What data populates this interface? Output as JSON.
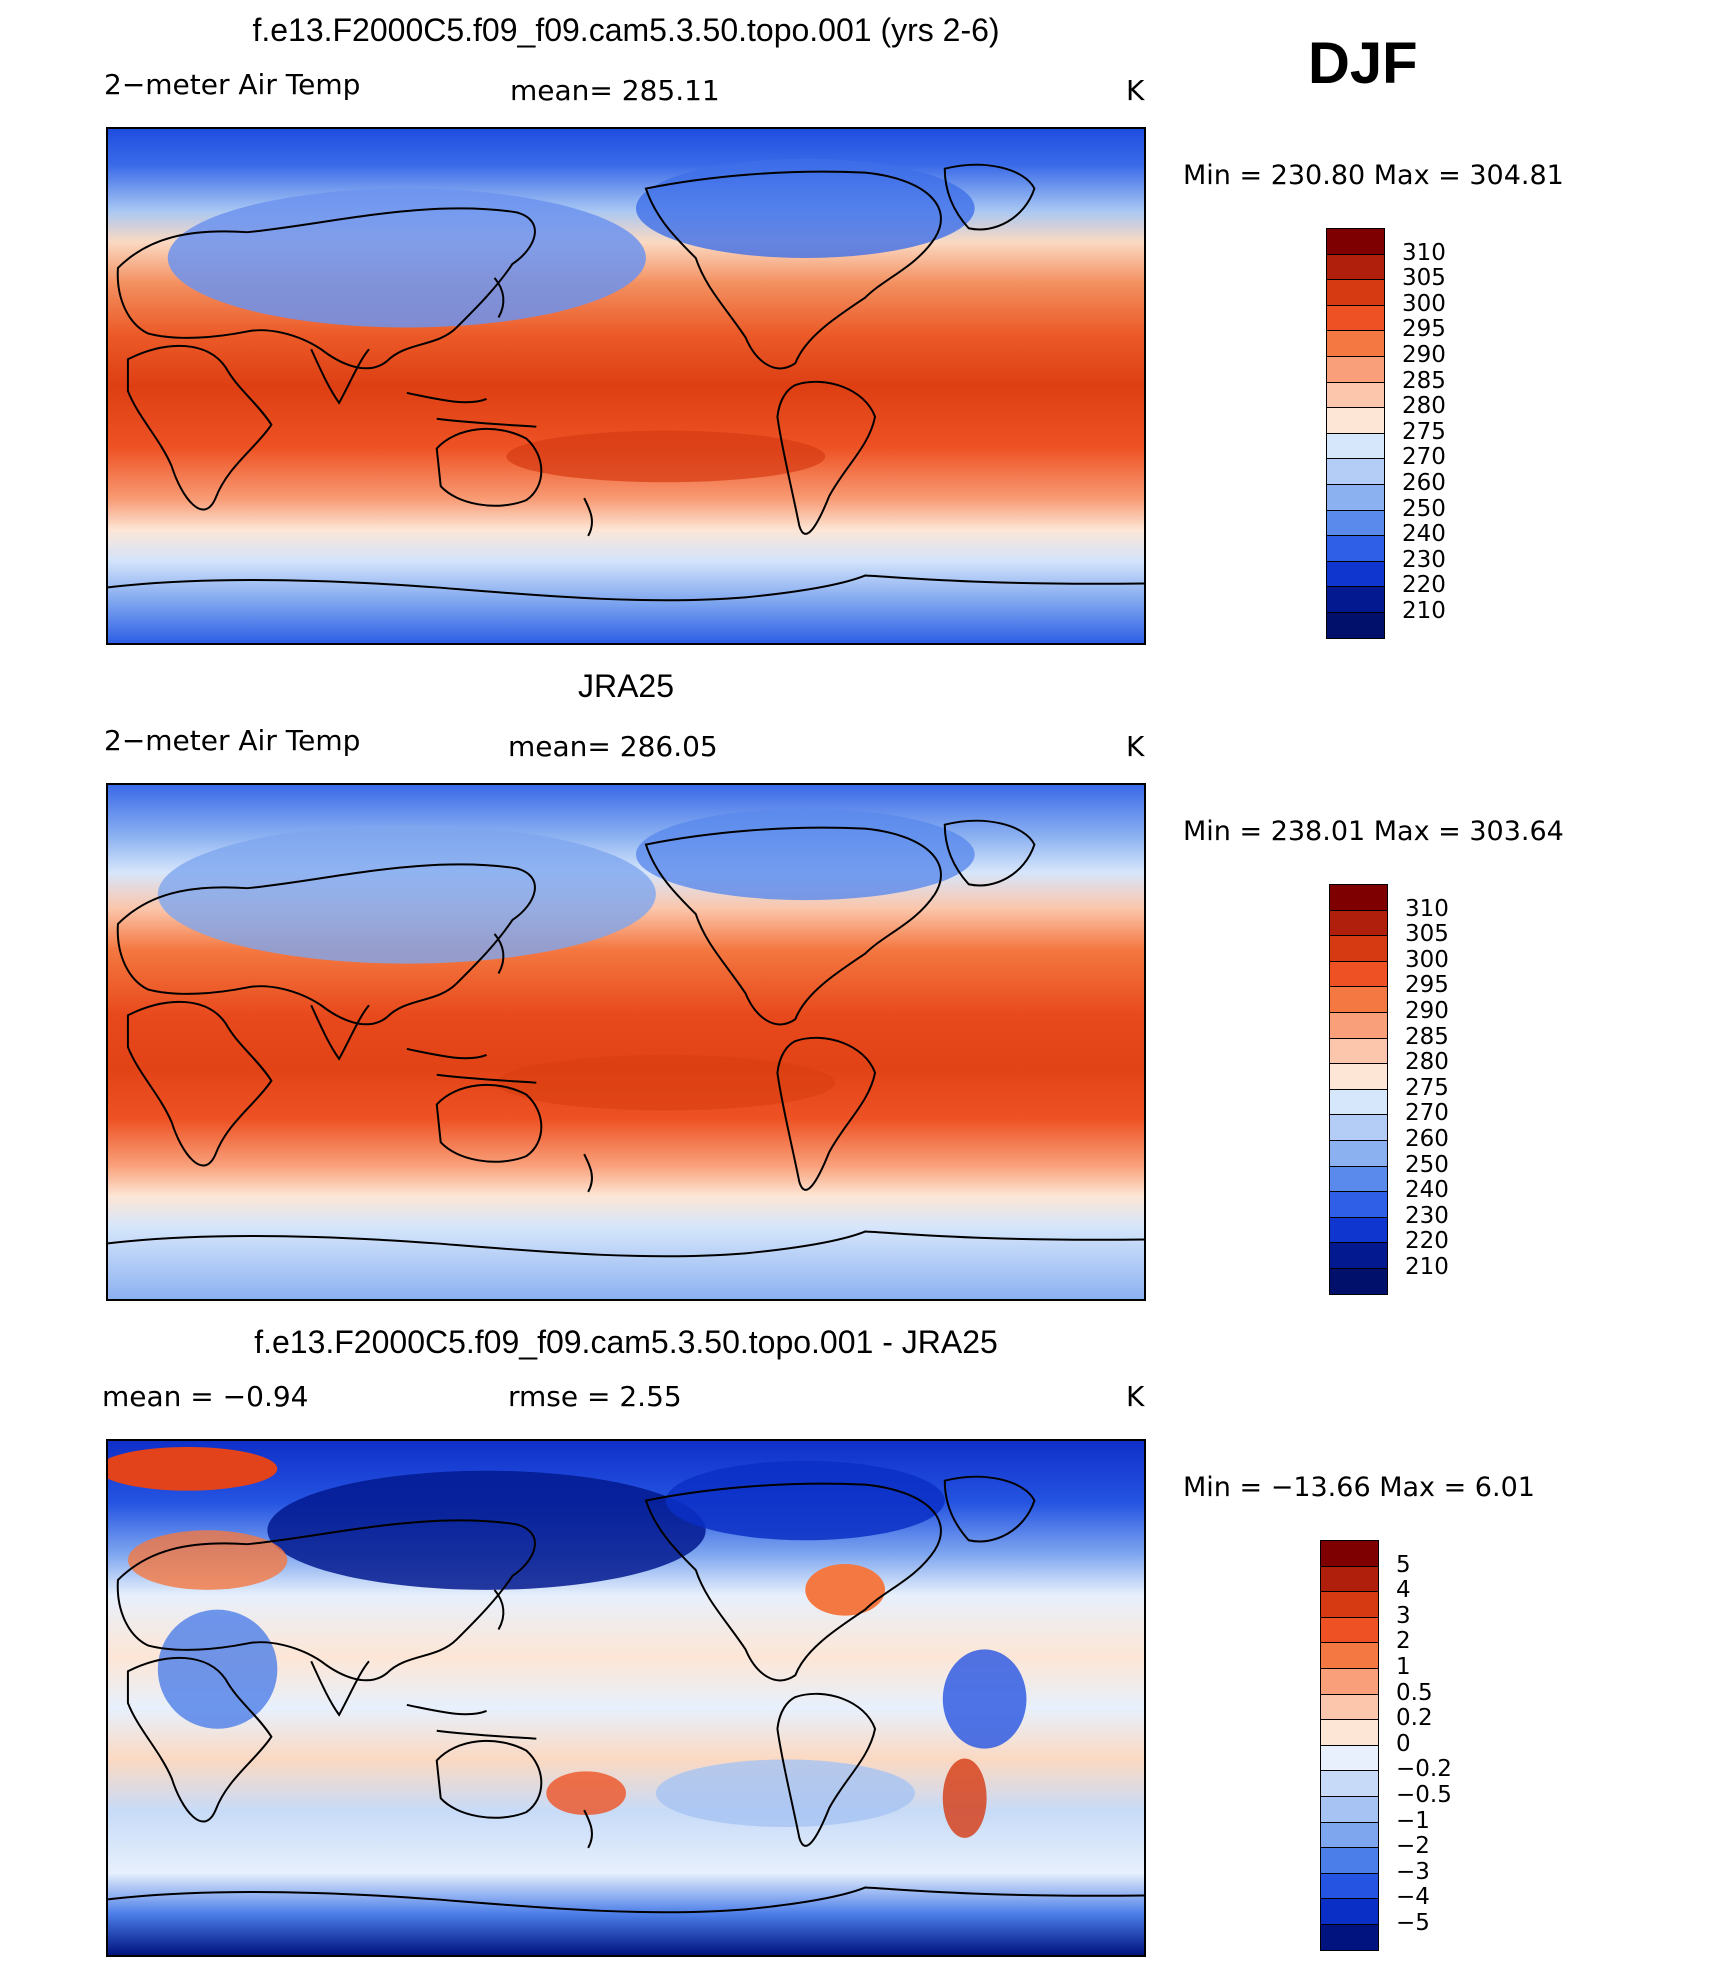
{
  "season": "DJF",
  "panels": [
    {
      "title": "f.e13.F2000C5.f09_f09.cam5.3.50.topo.001 (yrs 2-6)",
      "left": "2−meter Air Temp",
      "center": "mean=  285.11",
      "units": "K",
      "minmax": "Min  =  230.80  Max  =  304.81",
      "colorbar": [
        "310",
        "305",
        "300",
        "295",
        "290",
        "285",
        "280",
        "275",
        "270",
        "260",
        "250",
        "240",
        "230",
        "220",
        "210"
      ]
    },
    {
      "title": "JRA25",
      "left": "2−meter Air Temp",
      "center": "mean=  286.05",
      "units": "K",
      "minmax": "Min  =  238.01  Max  =  303.64",
      "colorbar": [
        "310",
        "305",
        "300",
        "295",
        "290",
        "285",
        "280",
        "275",
        "270",
        "260",
        "250",
        "240",
        "230",
        "220",
        "210"
      ]
    },
    {
      "title": "f.e13.F2000C5.f09_f09.cam5.3.50.topo.001 - JRA25",
      "left": "mean  =     −0.94",
      "center": "rmse  =      2.55",
      "units": "K",
      "minmax": "Min  =  −13.66  Max  =       6.01",
      "colorbar": [
        "5",
        "4",
        "3",
        "2",
        "1",
        "0.5",
        "0.2",
        "0",
        "−0.2",
        "−0.5",
        "−1",
        "−2",
        "−3",
        "−4",
        "−5"
      ]
    }
  ],
  "colors": {
    "temp_scale": [
      "#7f0000",
      "#b01f0c",
      "#d63a12",
      "#ee5224",
      "#f47841",
      "#f9a07a",
      "#fbc6ab",
      "#fde6d6",
      "#d6e6fb",
      "#b3cdf6",
      "#8cb1f1",
      "#5a8aec",
      "#2f5fe6",
      "#0f37cf",
      "#02198f",
      "#00106b"
    ],
    "diff_scale": [
      "#7f0000",
      "#b01f0c",
      "#d63a12",
      "#ee5224",
      "#f47841",
      "#f9a07a",
      "#fbc6ab",
      "#fde6d6",
      "#e7f0fc",
      "#c7dbf8",
      "#a6c3f3",
      "#7ea6ef",
      "#4c7ee9",
      "#2554e2",
      "#0a2fc6",
      "#00137e"
    ]
  }
}
